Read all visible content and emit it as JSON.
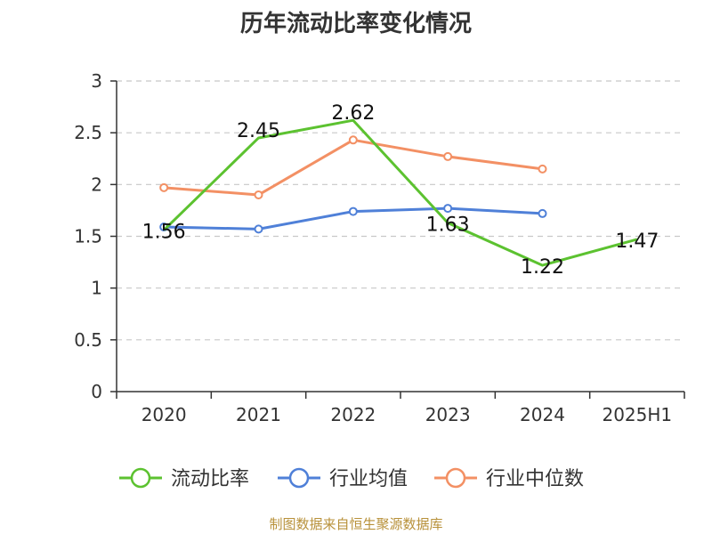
{
  "chart_data": {
    "type": "line",
    "title": "历年流动比率变化情况",
    "categories": [
      "2020",
      "2021",
      "2022",
      "2023",
      "2024",
      "2025H1"
    ],
    "ylim": [
      0,
      3
    ],
    "yticks": [
      "0",
      "0.5",
      "1",
      "1.5",
      "2",
      "2.5",
      "3"
    ],
    "grid": true,
    "legend_position": "bottom",
    "series": [
      {
        "name": "流动比率",
        "color": "#5cc230",
        "values": [
          1.56,
          2.45,
          2.62,
          1.63,
          1.22,
          1.47
        ],
        "labels": [
          "1.56",
          "2.45",
          "2.62",
          "1.63",
          "1.22",
          "1.47"
        ]
      },
      {
        "name": "行业均值",
        "color": "#4f80d8",
        "values": [
          1.59,
          1.57,
          1.74,
          1.77,
          1.72,
          null
        ]
      },
      {
        "name": "行业中位数",
        "color": "#f39064",
        "values": [
          1.97,
          1.9,
          2.43,
          2.27,
          2.15,
          null
        ]
      }
    ]
  },
  "footer": {
    "source": "制图数据来自恒生聚源数据库"
  }
}
